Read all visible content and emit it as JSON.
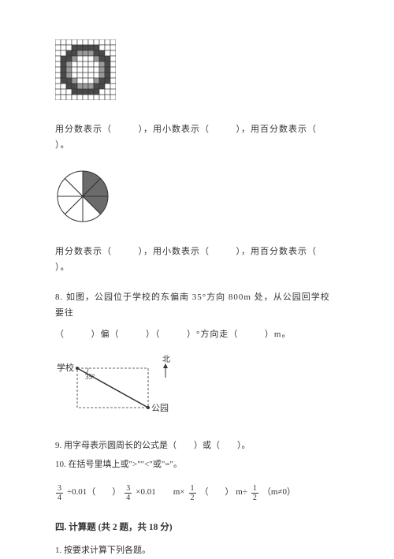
{
  "gridFigure": {
    "size": 11,
    "cellSize": 7,
    "darkCells": [
      [
        1,
        3
      ],
      [
        1,
        4
      ],
      [
        1,
        5
      ],
      [
        1,
        6
      ],
      [
        1,
        7
      ],
      [
        2,
        2
      ],
      [
        2,
        3
      ],
      [
        2,
        7
      ],
      [
        2,
        8
      ],
      [
        3,
        1
      ],
      [
        3,
        2
      ],
      [
        3,
        8
      ],
      [
        3,
        9
      ],
      [
        4,
        1
      ],
      [
        4,
        9
      ],
      [
        5,
        1
      ],
      [
        5,
        9
      ],
      [
        6,
        1
      ],
      [
        6,
        9
      ],
      [
        7,
        1
      ],
      [
        7,
        2
      ],
      [
        7,
        8
      ],
      [
        7,
        9
      ],
      [
        8,
        2
      ],
      [
        8,
        3
      ],
      [
        8,
        7
      ],
      [
        8,
        8
      ],
      [
        9,
        3
      ],
      [
        9,
        4
      ],
      [
        9,
        5
      ],
      [
        9,
        6
      ],
      [
        9,
        7
      ]
    ],
    "grayCells": [
      [
        2,
        4
      ],
      [
        2,
        5
      ],
      [
        2,
        6
      ],
      [
        3,
        3
      ],
      [
        3,
        7
      ],
      [
        4,
        2
      ],
      [
        4,
        8
      ],
      [
        5,
        2
      ],
      [
        5,
        8
      ],
      [
        6,
        2
      ],
      [
        6,
        8
      ],
      [
        7,
        3
      ],
      [
        7,
        7
      ],
      [
        8,
        4
      ],
      [
        8,
        5
      ],
      [
        8,
        6
      ]
    ],
    "border": "#333333",
    "dark": "#4a4a4a",
    "gray": "#9a9a9a",
    "light": "#ffffff"
  },
  "line1": {
    "t1": "用分数表示（",
    "t2": "），用小数表示（",
    "t3": "），用百分数表示（",
    "t4": "）。"
  },
  "pie": {
    "radius": 32,
    "shadedCount": 3,
    "totalSlices": 8,
    "fillDark": "#6b6b6b",
    "fillLight": "#ffffff",
    "stroke": "#333333"
  },
  "line2": {
    "t1": "用分数表示（",
    "t2": "），用小数表示（",
    "t3": "），用百分数表示（",
    "t4": "）。"
  },
  "q8": {
    "line1_a": "8. 如图，公园位于学校的东偏南 35°方向 800m 处，从公园回学校要往",
    "line2_a": "（",
    "line2_b": "）偏（",
    "line2_c": "）（",
    "line2_d": "）°方向走（",
    "line2_e": "）m。"
  },
  "direction": {
    "width": 140,
    "height": 80,
    "schoolLabel": "学校",
    "parkLabel": "公园",
    "northLabel": "北",
    "angleLabel": "35°",
    "stroke": "#333333"
  },
  "q9": {
    "text": "9. 用字母表示圆周长的公式是（　　）或（　　）。"
  },
  "q10": {
    "label": "10. 在括号里填上或\">\"\"<\"或\"=\"。",
    "f1n": "3",
    "f1d": "4",
    "op1": "÷0.01（",
    "gap1": "）",
    "f2n": "3",
    "f2d": "4",
    "op2": "×0.01　　m×",
    "f3n": "1",
    "f3d": "2",
    "gap2": "（",
    "gap3": "） m÷",
    "f4n": "1",
    "f4d": "2",
    "tail": "（m≠0）"
  },
  "section4": {
    "title": "四. 计算题 (共 2 题，共 18 分)",
    "q1": "1. 按要求计算下列各题。"
  }
}
